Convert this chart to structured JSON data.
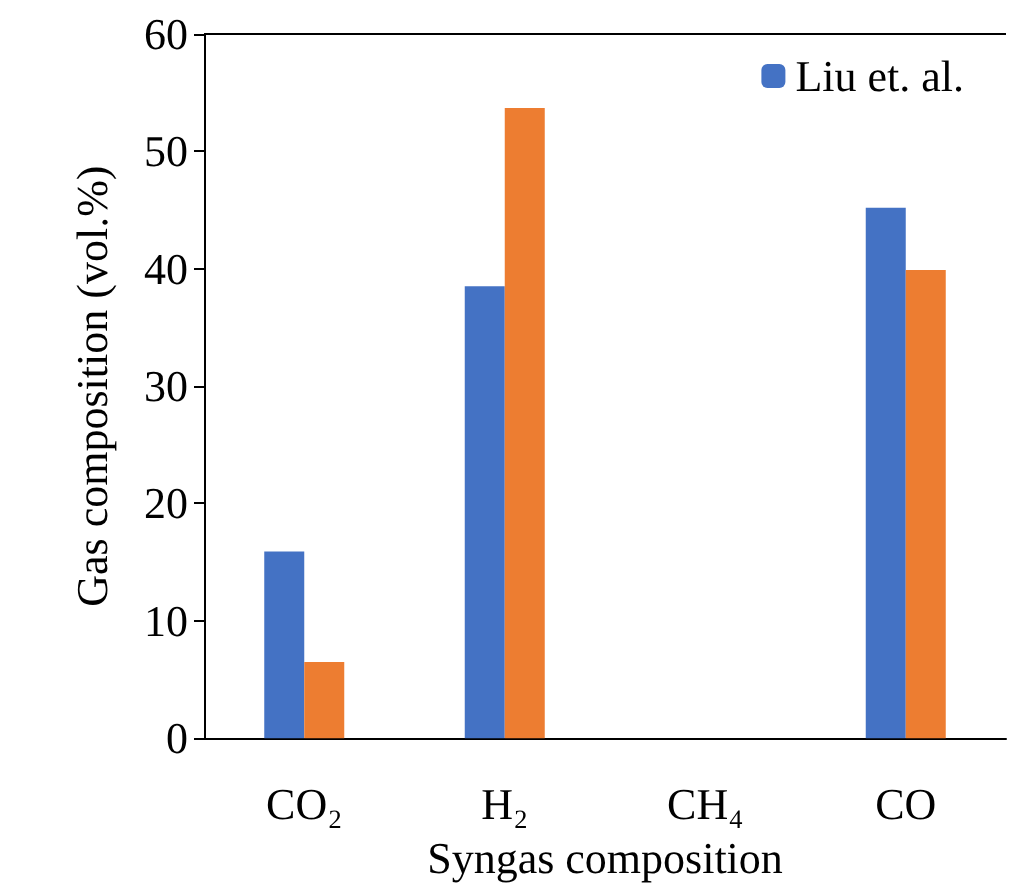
{
  "chart_data": {
    "type": "bar",
    "xlabel": "Syngas composition",
    "ylabel": "Gas composition (vol.%)",
    "categories": [
      "CO₂",
      "H₂",
      "CH₄",
      "CO"
    ],
    "series": [
      {
        "name": "Liu et. al.",
        "color": "#4472c4",
        "values": [
          15.9,
          38.5,
          0,
          45.2
        ]
      },
      {
        "color": "#ed7d31",
        "values": [
          6.5,
          53.7,
          0,
          39.9
        ]
      }
    ],
    "ylim": [
      0,
      60
    ],
    "yticks": [
      0,
      10,
      20,
      30,
      40,
      50,
      60
    ],
    "grid": false,
    "legend": "top right"
  }
}
